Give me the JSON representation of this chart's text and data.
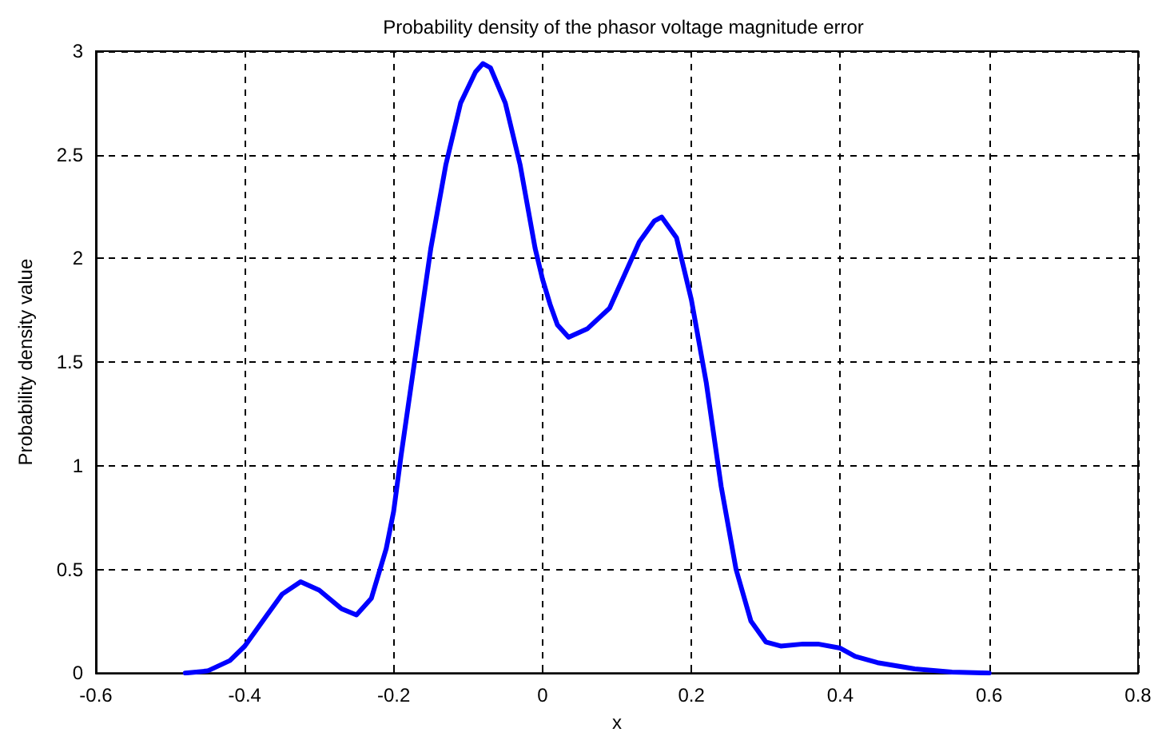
{
  "chart_data": {
    "type": "line",
    "title": "Probability density of the phasor voltage magnitude error",
    "xlabel": "x",
    "ylabel": "Probability density value",
    "xlim": [
      -0.6,
      0.8
    ],
    "xticks": [
      -0.6,
      -0.4,
      -0.2,
      0,
      0.2,
      0.4,
      0.6,
      0.8
    ],
    "ylim": [
      0,
      3
    ],
    "yticks": [
      0,
      0.5,
      1,
      1.5,
      2,
      2.5,
      3
    ],
    "grid": true,
    "marker": "none",
    "line_style": "solid",
    "series": [
      {
        "color": "#0000ff",
        "x": [
          -0.48,
          -0.45,
          -0.42,
          -0.4,
          -0.37,
          -0.35,
          -0.325,
          -0.3,
          -0.27,
          -0.25,
          -0.23,
          -0.21,
          -0.2,
          -0.19,
          -0.17,
          -0.15,
          -0.13,
          -0.11,
          -0.09,
          -0.08,
          -0.07,
          -0.05,
          -0.03,
          -0.01,
          0,
          0.01,
          0.02,
          0.035,
          0.06,
          0.09,
          0.11,
          0.13,
          0.15,
          0.16,
          0.18,
          0.2,
          0.22,
          0.24,
          0.26,
          0.28,
          0.3,
          0.32,
          0.35,
          0.37,
          0.4,
          0.42,
          0.45,
          0.5,
          0.55,
          0.6
        ],
        "values": [
          0,
          0.01,
          0.06,
          0.13,
          0.28,
          0.38,
          0.44,
          0.4,
          0.31,
          0.28,
          0.36,
          0.6,
          0.78,
          1.05,
          1.55,
          2.05,
          2.45,
          2.75,
          2.9,
          2.94,
          2.92,
          2.75,
          2.45,
          2.05,
          1.9,
          1.78,
          1.68,
          1.62,
          1.66,
          1.76,
          1.92,
          2.08,
          2.18,
          2.2,
          2.1,
          1.8,
          1.4,
          0.9,
          0.5,
          0.25,
          0.15,
          0.13,
          0.14,
          0.14,
          0.12,
          0.08,
          0.05,
          0.02,
          0.005,
          0
        ]
      }
    ]
  }
}
